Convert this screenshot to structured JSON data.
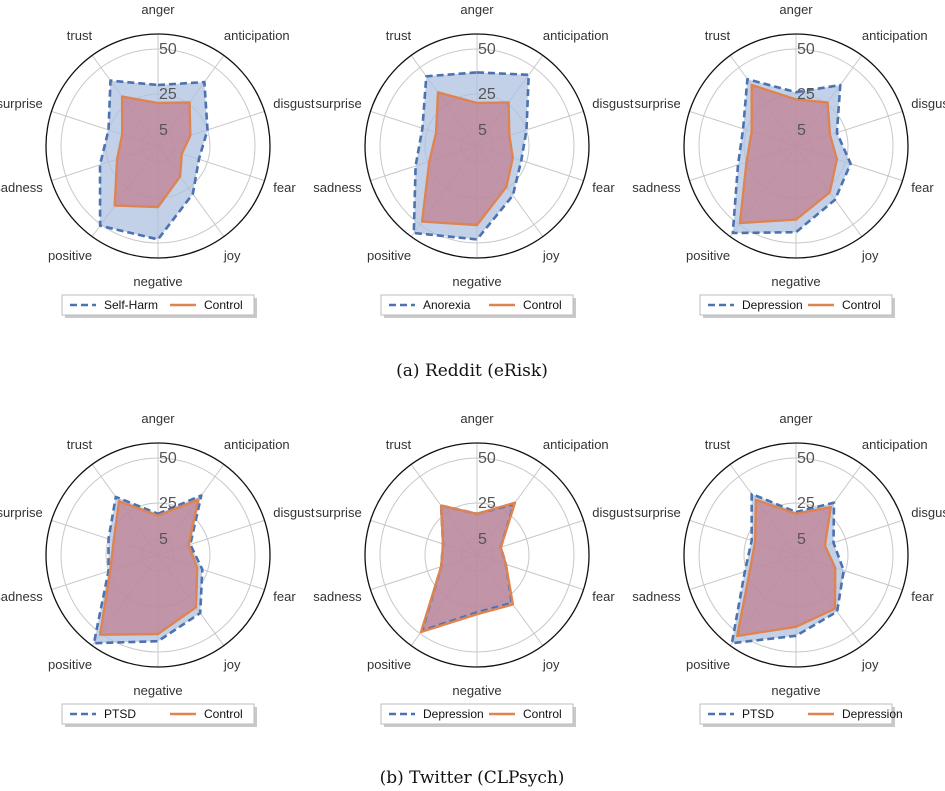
{
  "figure": {
    "captions": [
      "(a) Reddit (eRisk)",
      "(b) Twitter (CLPsych)"
    ]
  },
  "colors": {
    "series1": "#4c72b0",
    "series2": "#dd8452",
    "fill1": "#aec2e0",
    "fill2": "#c27f93",
    "grid": "#c8c8c8",
    "outline": "#111111"
  },
  "chart_data": [
    {
      "type": "radar",
      "axes": [
        "anger",
        "anticipation",
        "disgust",
        "fear",
        "joy",
        "negative",
        "positive",
        "sadness",
        "surprise",
        "trust"
      ],
      "ticks": [
        "5",
        "25",
        "50"
      ],
      "ylim": [
        0,
        60
      ],
      "legend_placement": "bottom-center",
      "series": [
        {
          "name": "Self-Harm",
          "values": [
            30,
            40,
            25,
            20,
            29,
            48,
            51,
            30,
            25,
            41
          ]
        },
        {
          "name": "Control",
          "values": [
            20,
            26,
            15,
            10,
            17,
            30,
            37,
            20,
            17,
            30
          ]
        }
      ]
    },
    {
      "type": "radar",
      "axes": [
        "anger",
        "anticipation",
        "disgust",
        "fear",
        "joy",
        "negative",
        "positive",
        "sadness",
        "surprise",
        "trust"
      ],
      "ticks": [
        "5",
        "25",
        "50"
      ],
      "ylim": [
        0,
        60
      ],
      "legend_placement": "bottom-center",
      "series": [
        {
          "name": "Anorexia",
          "values": [
            37,
            45,
            25,
            22,
            30,
            48,
            57,
            32,
            28,
            44
          ]
        },
        {
          "name": "Control",
          "values": [
            20,
            26,
            15,
            17,
            24,
            40,
            48,
            24,
            20,
            33
          ]
        }
      ]
    },
    {
      "type": "radar",
      "axes": [
        "anger",
        "anticipation",
        "disgust",
        "fear",
        "joy",
        "negative",
        "positive",
        "sadness",
        "surprise",
        "trust"
      ],
      "ticks": [
        "5",
        "25",
        "50"
      ],
      "ylim": [
        0,
        60
      ],
      "legend_placement": "bottom-center",
      "series": [
        {
          "name": "Depression",
          "values": [
            26,
            38,
            20,
            28,
            33,
            44,
            57,
            30,
            27,
            42
          ]
        },
        {
          "name": "Control",
          "values": [
            22,
            26,
            16,
            20,
            28,
            37,
            49,
            25,
            22,
            38
          ]
        }
      ]
    },
    {
      "type": "radar",
      "axes": [
        "anger",
        "anticipation",
        "disgust",
        "fear",
        "joy",
        "negative",
        "positive",
        "sadness",
        "surprise",
        "trust"
      ],
      "ticks": [
        "5",
        "25",
        "50"
      ],
      "ylim": [
        0,
        60
      ],
      "legend_placement": "bottom-center",
      "series": [
        {
          "name": "PTSD",
          "values": [
            19,
            37,
            15,
            22,
            36,
            44,
            58,
            25,
            25,
            36
          ]
        },
        {
          "name": "Control",
          "values": [
            18,
            34,
            14,
            19,
            32,
            40,
            51,
            24,
            22,
            33
          ]
        }
      ]
    },
    {
      "type": "radar",
      "axes": [
        "anger",
        "anticipation",
        "disgust",
        "fear",
        "joy",
        "negative",
        "positive",
        "sadness",
        "surprise",
        "trust"
      ],
      "ticks": [
        "5",
        "25",
        "50"
      ],
      "ylim": [
        0,
        60
      ],
      "legend_placement": "bottom-center",
      "series": [
        {
          "name": "Depression",
          "values": [
            19,
            31,
            10,
            13,
            29,
            28,
            48,
            17,
            16,
            30
          ]
        },
        {
          "name": "Control",
          "values": [
            19,
            32,
            10,
            13,
            30,
            29,
            49,
            17,
            16,
            30
          ]
        }
      ]
    },
    {
      "type": "radar",
      "axes": [
        "anger",
        "anticipation",
        "disgust",
        "fear",
        "joy",
        "negative",
        "positive",
        "sadness",
        "surprise",
        "trust"
      ],
      "ticks": [
        "5",
        "25",
        "50"
      ],
      "ylim": [
        0,
        60
      ],
      "legend_placement": "bottom-center",
      "series": [
        {
          "name": "PTSD",
          "values": [
            20,
            32,
            18,
            24,
            35,
            41,
            58,
            26,
            22,
            38
          ]
        },
        {
          "name": "Depression",
          "values": [
            19,
            29,
            13,
            19,
            33,
            36,
            52,
            23,
            20,
            34
          ]
        }
      ]
    }
  ]
}
